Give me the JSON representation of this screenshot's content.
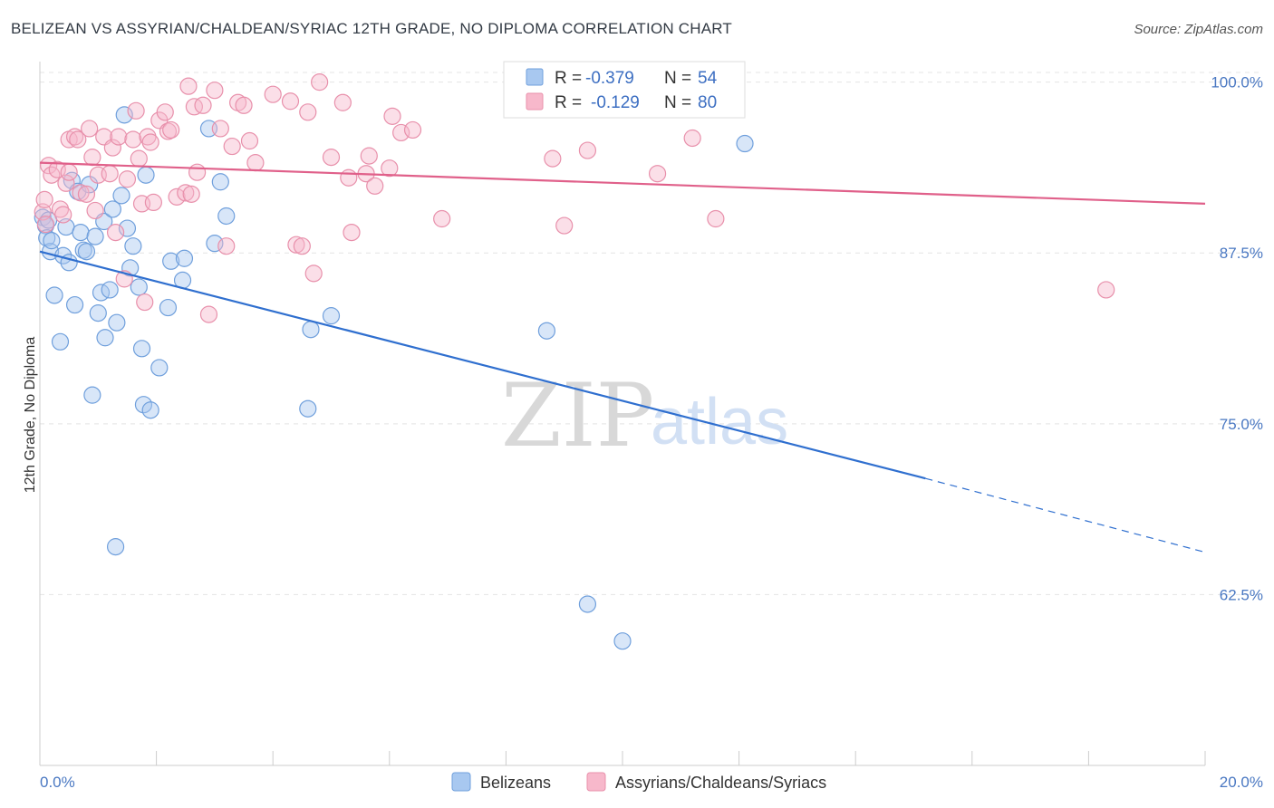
{
  "title": "BELIZEAN VS ASSYRIAN/CHALDEAN/SYRIAC 12TH GRADE, NO DIPLOMA CORRELATION CHART",
  "source": "Source: ZipAtlas.com",
  "watermark": {
    "zip": "ZIP",
    "atlas": "atlas"
  },
  "legend_box": {
    "rows": [
      {
        "r_label": "R = ",
        "r_value": "-0.379",
        "n_label": "N = ",
        "n_value": "54",
        "color": "#a8c8f0"
      },
      {
        "r_label": "R = ",
        "r_value": "-0.129",
        "n_label": "N = ",
        "n_value": "80",
        "color": "#f7b8cb"
      }
    ]
  },
  "chart_data": {
    "type": "scatter",
    "title": "BELIZEAN VS ASSYRIAN/CHALDEAN/SYRIAC 12TH GRADE, NO DIPLOMA CORRELATION CHART",
    "xlabel": "",
    "ylabel": "12th Grade, No Diploma",
    "xlim": [
      0,
      20
    ],
    "ylim": [
      50,
      101.5
    ],
    "x_tick_labels": [
      "0.0%",
      "20.0%"
    ],
    "y_ticks": [
      62.5,
      75.0,
      87.5,
      100.0
    ],
    "y_tick_labels": [
      "62.5%",
      "75.0%",
      "87.5%",
      "100.0%"
    ],
    "grid": true,
    "legend": "bottom-center",
    "series": [
      {
        "name": "Belizeans",
        "color": "#a8c8f0",
        "stroke": "#6f9fdc",
        "line_color": "#2f6fcf",
        "trend": {
          "x0": 0.0,
          "y0": 87.6,
          "x1": 15.2,
          "y1": 71.0,
          "dash_to_x": 20.0,
          "dash_to_y": 65.6
        },
        "points": [
          [
            0.05,
            90.1
          ],
          [
            0.1,
            89.5
          ],
          [
            0.12,
            88.6
          ],
          [
            0.15,
            89.9
          ],
          [
            0.18,
            87.6
          ],
          [
            0.2,
            88.4
          ],
          [
            0.25,
            84.4
          ],
          [
            0.35,
            81.0
          ],
          [
            0.4,
            87.3
          ],
          [
            0.45,
            89.4
          ],
          [
            0.5,
            86.8
          ],
          [
            0.55,
            92.8
          ],
          [
            0.6,
            83.7
          ],
          [
            0.65,
            92.0
          ],
          [
            0.7,
            89.0
          ],
          [
            0.75,
            87.7
          ],
          [
            0.8,
            87.6
          ],
          [
            0.85,
            92.5
          ],
          [
            0.9,
            77.1
          ],
          [
            0.95,
            88.7
          ],
          [
            1.0,
            83.1
          ],
          [
            1.05,
            84.6
          ],
          [
            1.1,
            89.8
          ],
          [
            1.12,
            81.3
          ],
          [
            1.2,
            84.8
          ],
          [
            1.25,
            90.7
          ],
          [
            1.3,
            66.0
          ],
          [
            1.32,
            82.4
          ],
          [
            1.4,
            91.7
          ],
          [
            1.45,
            97.6
          ],
          [
            1.5,
            89.3
          ],
          [
            1.55,
            86.4
          ],
          [
            1.6,
            88.0
          ],
          [
            1.7,
            85.0
          ],
          [
            1.75,
            80.5
          ],
          [
            1.78,
            76.4
          ],
          [
            1.82,
            93.2
          ],
          [
            1.9,
            76.0
          ],
          [
            2.05,
            79.1
          ],
          [
            2.2,
            83.5
          ],
          [
            2.25,
            86.9
          ],
          [
            2.45,
            85.5
          ],
          [
            2.48,
            87.1
          ],
          [
            2.9,
            96.6
          ],
          [
            3.0,
            88.2
          ],
          [
            3.1,
            92.7
          ],
          [
            3.2,
            90.2
          ],
          [
            4.6,
            76.1
          ],
          [
            4.65,
            81.9
          ],
          [
            5.0,
            82.9
          ],
          [
            8.7,
            81.8
          ],
          [
            9.4,
            61.8
          ],
          [
            10.0,
            59.1
          ],
          [
            12.1,
            95.5
          ]
        ]
      },
      {
        "name": "Assyrians/Chaldeans/Syriacs",
        "color": "#f7b8cb",
        "stroke": "#e890ab",
        "line_color": "#e0608a",
        "trend": {
          "x0": 0.0,
          "y0": 94.1,
          "x1": 20.0,
          "y1": 91.1
        },
        "points": [
          [
            0.05,
            90.5
          ],
          [
            0.08,
            91.4
          ],
          [
            0.1,
            89.6
          ],
          [
            0.15,
            93.9
          ],
          [
            0.2,
            93.2
          ],
          [
            0.3,
            93.6
          ],
          [
            0.35,
            90.7
          ],
          [
            0.4,
            90.3
          ],
          [
            0.45,
            92.6
          ],
          [
            0.5,
            93.4
          ],
          [
            0.5,
            95.8
          ],
          [
            0.6,
            96.0
          ],
          [
            0.65,
            95.8
          ],
          [
            0.7,
            91.9
          ],
          [
            0.8,
            91.8
          ],
          [
            0.85,
            96.6
          ],
          [
            0.9,
            94.5
          ],
          [
            0.95,
            90.6
          ],
          [
            1.0,
            93.2
          ],
          [
            1.1,
            96.0
          ],
          [
            1.2,
            93.3
          ],
          [
            1.25,
            95.2
          ],
          [
            1.3,
            89.0
          ],
          [
            1.35,
            96.0
          ],
          [
            1.45,
            85.6
          ],
          [
            1.5,
            92.9
          ],
          [
            1.6,
            95.8
          ],
          [
            1.65,
            97.9
          ],
          [
            1.7,
            94.4
          ],
          [
            1.75,
            91.1
          ],
          [
            1.8,
            83.9
          ],
          [
            1.85,
            96.0
          ],
          [
            1.9,
            95.6
          ],
          [
            1.95,
            91.2
          ],
          [
            2.05,
            97.2
          ],
          [
            2.15,
            97.8
          ],
          [
            2.2,
            96.4
          ],
          [
            2.25,
            96.5
          ],
          [
            2.35,
            91.6
          ],
          [
            2.5,
            91.9
          ],
          [
            2.55,
            99.7
          ],
          [
            2.6,
            91.8
          ],
          [
            2.65,
            98.2
          ],
          [
            2.7,
            93.4
          ],
          [
            2.8,
            98.3
          ],
          [
            2.9,
            83.0
          ],
          [
            3.0,
            99.4
          ],
          [
            3.1,
            96.6
          ],
          [
            3.2,
            88.0
          ],
          [
            3.3,
            95.3
          ],
          [
            3.4,
            98.5
          ],
          [
            3.5,
            98.3
          ],
          [
            3.6,
            95.7
          ],
          [
            3.7,
            94.1
          ],
          [
            4.0,
            99.1
          ],
          [
            4.3,
            98.6
          ],
          [
            4.4,
            88.1
          ],
          [
            4.5,
            88.0
          ],
          [
            4.6,
            97.8
          ],
          [
            4.7,
            86.0
          ],
          [
            4.8,
            100.0
          ],
          [
            5.0,
            94.5
          ],
          [
            5.2,
            98.5
          ],
          [
            5.3,
            93.0
          ],
          [
            5.35,
            89.0
          ],
          [
            5.6,
            93.3
          ],
          [
            5.65,
            94.6
          ],
          [
            5.75,
            92.4
          ],
          [
            6.0,
            93.7
          ],
          [
            6.05,
            97.5
          ],
          [
            6.2,
            96.3
          ],
          [
            6.4,
            96.5
          ],
          [
            6.9,
            90.0
          ],
          [
            8.8,
            94.4
          ],
          [
            9.0,
            89.5
          ],
          [
            9.4,
            95.0
          ],
          [
            10.6,
            93.3
          ],
          [
            11.2,
            95.9
          ],
          [
            11.6,
            90.0
          ],
          [
            18.3,
            84.8
          ]
        ]
      }
    ]
  }
}
